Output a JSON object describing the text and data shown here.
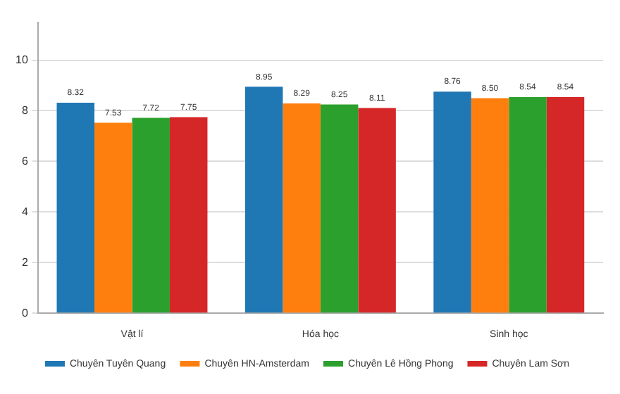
{
  "chart_data": {
    "type": "bar",
    "categories": [
      "Vật lí",
      "Hóa học",
      "Sinh học"
    ],
    "series": [
      {
        "name": "Chuyên Tuyên Quang",
        "color": "#1f77b4",
        "values": [
          8.32,
          8.95,
          8.76
        ],
        "value_labels": [
          "8.32",
          "8.95",
          "8.76"
        ]
      },
      {
        "name": "Chuyên HN-Amsterdam",
        "color": "#ff7f0e",
        "values": [
          7.53,
          8.29,
          8.5
        ],
        "value_labels": [
          "7.53",
          "8.29",
          "8.50"
        ]
      },
      {
        "name": "Chuyên Lê Hồng Phong",
        "color": "#2ca02c",
        "values": [
          7.72,
          8.25,
          8.54
        ],
        "value_labels": [
          "7.72",
          "8.25",
          "8.54"
        ]
      },
      {
        "name": "Chuyên Lam Sơn",
        "color": "#d62728",
        "values": [
          7.75,
          8.11,
          8.54
        ],
        "value_labels": [
          "7.75",
          "8.11",
          "8.54"
        ]
      }
    ],
    "ylim": [
      0,
      11.5
    ],
    "yticks": [
      0,
      2,
      4,
      6,
      8,
      10
    ],
    "grid": "y",
    "legend": "bottom"
  }
}
